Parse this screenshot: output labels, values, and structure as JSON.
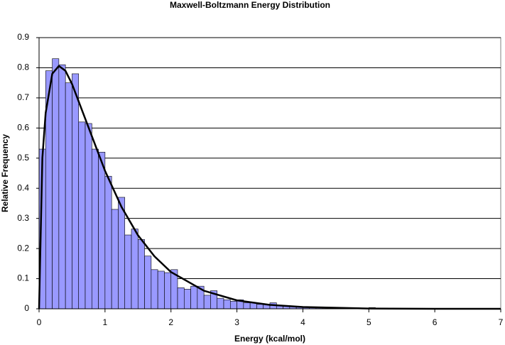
{
  "chart_data": {
    "type": "histogram",
    "title": "Maxwell-Boltzmann Energy Distribution",
    "x_label": "Energy (kcal/mol)",
    "y_label": "Relative Frequency",
    "bins": [
      0,
      0.1,
      0.2,
      0.3,
      0.4,
      0.5,
      0.6,
      0.7,
      0.8,
      0.9,
      1,
      1.1,
      1.2,
      1.3,
      1.4,
      1.5,
      1.6,
      1.7,
      1.8,
      1.9,
      2,
      2.1,
      2.2,
      2.3,
      2.4,
      2.5,
      2.6,
      2.7,
      2.8,
      2.9,
      3,
      3.1,
      3.2,
      3.3,
      3.4,
      3.5,
      3.6,
      3.7,
      3.8,
      3.9,
      4,
      4.1,
      4.2,
      4.3,
      4.4,
      4.5,
      4.6,
      4.7,
      4.8,
      4.9,
      5,
      5.1,
      5.2,
      5.3,
      5.4,
      5.5,
      5.6,
      5.7,
      5.8,
      5.9,
      6,
      6.1,
      6.2,
      6.3,
      6.4,
      6.5,
      6.6,
      6.7,
      6.8,
      6.9,
      7
    ],
    "values": [
      0.53,
      0.79,
      0.83,
      0.81,
      0.75,
      0.78,
      0.62,
      0.615,
      0.53,
      0.52,
      0.44,
      0.33,
      0.37,
      0.245,
      0.265,
      0.23,
      0.175,
      0.13,
      0.125,
      0.12,
      0.13,
      0.07,
      0.065,
      0.075,
      0.075,
      0.045,
      0.06,
      0.035,
      0.03,
      0.025,
      0.03,
      0.02,
      0.02,
      0.015,
      0.015,
      0.02,
      0.01,
      0.01,
      0.008,
      0.006,
      0.005,
      0.005,
      0.005,
      0.004,
      0.003,
      0.003,
      0.003,
      0.002,
      0.002,
      0.002,
      0.004,
      0.002,
      0,
      0,
      0,
      0,
      0,
      0,
      0,
      0,
      0,
      0,
      0,
      0,
      0,
      0,
      0,
      0,
      0,
      0
    ],
    "color": "#9999ff",
    "curve": {
      "x": [
        0,
        0.05,
        0.1,
        0.2,
        0.3,
        0.4,
        0.5,
        0.75,
        1,
        1.25,
        1.5,
        1.75,
        2,
        2.5,
        3,
        3.5,
        4,
        5,
        6,
        7
      ],
      "values": [
        0,
        0.5,
        0.65,
        0.78,
        0.806,
        0.79,
        0.746,
        0.602,
        0.458,
        0.338,
        0.244,
        0.174,
        0.122,
        0.06,
        0.028,
        0.013,
        0.006,
        0.001,
        0,
        0
      ],
      "color": "#000000"
    },
    "xlim": [
      0,
      7
    ],
    "xticks": [
      0,
      1,
      2,
      3,
      4,
      5,
      6,
      7
    ],
    "ylim": [
      0,
      0.9
    ],
    "yticks": [
      0,
      0.1,
      0.2,
      0.3,
      0.4,
      0.5,
      0.6,
      0.7,
      0.8,
      0.9
    ],
    "grid": true
  }
}
